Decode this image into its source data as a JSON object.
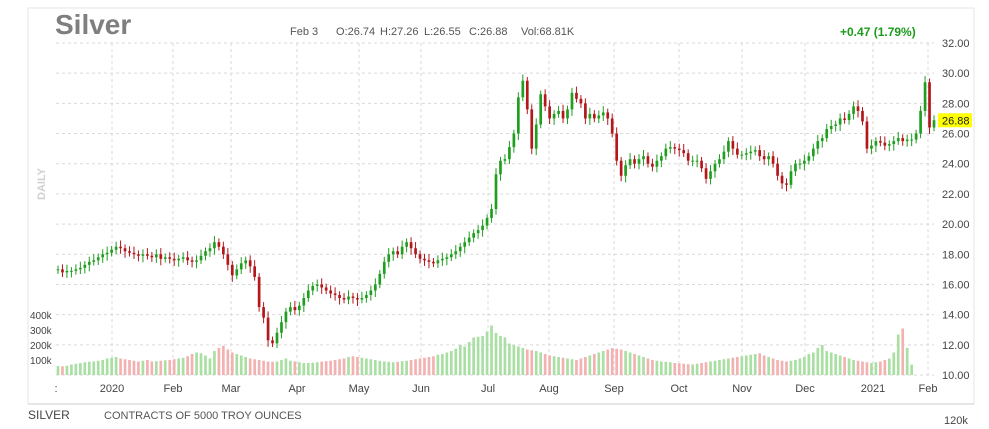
{
  "header": {
    "title": "Silver",
    "date": "Feb 3",
    "open": "O:26.74",
    "high": "H:27.26",
    "low": "L:26.55",
    "close": "C:26.88",
    "volume": "Vol:68.81K",
    "change": "+0.47 (1.79%)",
    "change_color": "#1a9c1a"
  },
  "period_label": "DAILY",
  "footer": {
    "symbol": "SILVER",
    "description": "CONTRACTS OF 5000 TROY OUNCES",
    "right_value": "120k"
  },
  "colors": {
    "up": "#1f9e1f",
    "down": "#b3171c",
    "up_vol": "#a9dfa2",
    "down_vol": "#f3b1b1",
    "grid": "#d9d9d9",
    "last_price_bg": "#ffff00"
  },
  "chart_data": {
    "type": "candlestick",
    "y_axis": {
      "range": [
        10,
        32
      ],
      "ticks": [
        "10.00",
        "12.00",
        "14.00",
        "16.00",
        "18.00",
        "20.00",
        "22.00",
        "24.00",
        "26.00",
        "28.00",
        "30.00",
        "32.00"
      ]
    },
    "volume_axis": {
      "range": [
        0,
        400000
      ],
      "ticks": [
        "100k",
        "200k",
        "300k",
        "400k"
      ]
    },
    "x_axis": {
      "ticks": [
        ":",
        "2020",
        "Feb",
        "Mar",
        "Apr",
        "May",
        "Jun",
        "Jul",
        "Aug",
        "Sep",
        "Oct",
        "Nov",
        "Dec",
        "2021",
        "Feb"
      ]
    },
    "last_price": "26.88",
    "grid": true,
    "closes": [
      17.0,
      16.8,
      16.9,
      16.9,
      17.0,
      17.1,
      17.3,
      17.5,
      17.6,
      17.8,
      18.0,
      18.1,
      18.3,
      18.5,
      18.4,
      18.2,
      18.1,
      18.0,
      17.9,
      18.0,
      17.9,
      17.8,
      18.0,
      17.7,
      17.8,
      17.7,
      17.6,
      17.7,
      17.8,
      17.6,
      17.5,
      17.6,
      17.9,
      18.2,
      18.4,
      18.8,
      18.5,
      18.0,
      17.3,
      16.6,
      17.0,
      17.4,
      17.6,
      17.2,
      16.5,
      14.5,
      13.8,
      12.3,
      12.1,
      12.8,
      13.5,
      14.2,
      14.5,
      14.3,
      14.6,
      15.1,
      15.6,
      15.9,
      16.0,
      15.8,
      15.6,
      15.4,
      15.3,
      15.1,
      15.0,
      15.2,
      15.1,
      15.0,
      15.1,
      15.3,
      15.6,
      16.0,
      16.7,
      17.5,
      18.0,
      18.2,
      18.0,
      18.5,
      18.8,
      18.4,
      18.0,
      17.7,
      17.6,
      17.5,
      17.4,
      17.6,
      17.7,
      17.8,
      18.0,
      18.2,
      18.5,
      18.8,
      19.1,
      19.4,
      19.6,
      19.9,
      20.4,
      21.0,
      23.3,
      24.2,
      24.3,
      25.1,
      26.0,
      28.4,
      29.5,
      27.6,
      25.0,
      26.6,
      28.6,
      27.8,
      27.0,
      27.3,
      27.5,
      27.0,
      27.6,
      28.7,
      28.3,
      28.0,
      27.0,
      27.3,
      27.0,
      27.2,
      27.4,
      27.0,
      26.0,
      24.2,
      23.2,
      23.9,
      24.3,
      24.0,
      24.3,
      24.5,
      24.0,
      23.8,
      24.2,
      24.5,
      25.0,
      25.1,
      25.0,
      24.9,
      24.7,
      24.2,
      24.2,
      24.2,
      23.7,
      23.0,
      23.5,
      24.0,
      24.3,
      24.8,
      25.5,
      25.0,
      24.6,
      24.6,
      24.7,
      24.8,
      24.9,
      24.5,
      24.3,
      24.5,
      24.0,
      23.2,
      22.7,
      22.6,
      23.5,
      24.0,
      24.0,
      24.2,
      24.5,
      25.0,
      25.5,
      25.7,
      26.3,
      26.5,
      26.6,
      27.0,
      26.9,
      27.3,
      27.8,
      27.5,
      26.8,
      25.0,
      25.2,
      25.5,
      25.4,
      25.2,
      25.3,
      25.5,
      25.7,
      25.5,
      25.6,
      25.6,
      26.0,
      27.5,
      29.4,
      26.4,
      26.88
    ],
    "volumes": [
      60,
      58,
      62,
      70,
      75,
      80,
      85,
      88,
      90,
      95,
      100,
      110,
      115,
      120,
      110,
      105,
      100,
      95,
      90,
      95,
      100,
      90,
      92,
      95,
      98,
      100,
      105,
      110,
      115,
      125,
      140,
      150,
      145,
      130,
      110,
      160,
      180,
      195,
      170,
      150,
      140,
      130,
      120,
      110,
      105,
      100,
      95,
      90,
      88,
      90,
      100,
      110,
      95,
      90,
      85,
      80,
      80,
      82,
      85,
      90,
      92,
      95,
      100,
      105,
      110,
      120,
      125,
      120,
      115,
      110,
      105,
      100,
      95,
      90,
      88,
      85,
      88,
      92,
      95,
      100,
      105,
      110,
      115,
      120,
      125,
      135,
      140,
      150,
      160,
      175,
      200,
      190,
      220,
      250,
      255,
      260,
      290,
      330,
      280,
      260,
      250,
      210,
      200,
      190,
      180,
      170,
      165,
      160,
      150,
      140,
      130,
      125,
      120,
      115,
      110,
      105,
      100,
      110,
      120,
      130,
      140,
      150,
      160,
      170,
      180,
      175,
      170,
      160,
      150,
      140,
      130,
      120,
      110,
      100,
      95,
      90,
      88,
      85,
      80,
      78,
      75,
      72,
      70,
      75,
      80,
      85,
      90,
      95,
      100,
      105,
      110,
      115,
      120,
      125,
      130,
      135,
      140,
      145,
      130,
      120,
      110,
      100,
      95,
      90,
      95,
      100,
      110,
      120,
      140,
      150,
      180,
      200,
      160,
      150,
      140,
      130,
      120,
      110,
      100,
      95,
      90,
      85,
      80,
      85,
      90,
      100,
      110,
      150,
      270,
      310,
      180,
      68.81
    ]
  }
}
